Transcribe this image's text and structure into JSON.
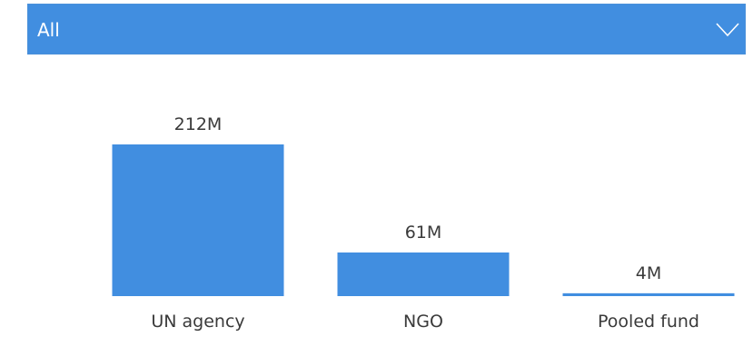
{
  "filter": {
    "selected": "All",
    "icon": "chevron-down-icon"
  },
  "chart_data": {
    "type": "bar",
    "categories": [
      "UN agency",
      "NGO",
      "Pooled fund"
    ],
    "values": [
      212,
      61,
      4
    ],
    "data_labels": [
      "212M",
      "61M",
      "4M"
    ],
    "unit": "M",
    "bar_color": "#418ee0",
    "title": "",
    "xlabel": "",
    "ylabel": "",
    "ylim": [
      0,
      212
    ],
    "grid": false,
    "axes_visible": false
  }
}
